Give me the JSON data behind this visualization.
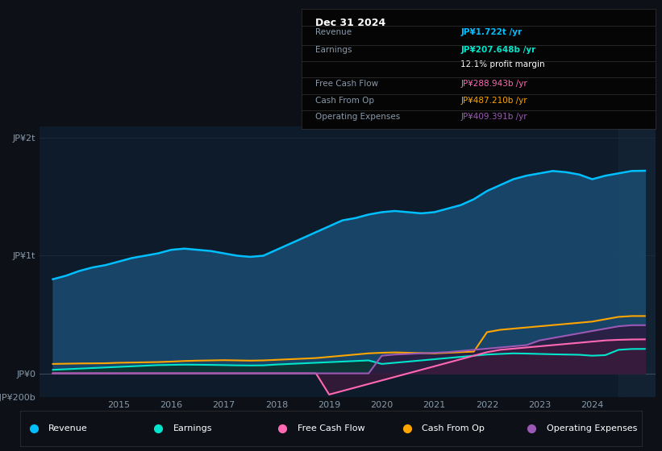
{
  "bg_color": "#0d1117",
  "chart_bg": "#0d1b2a",
  "years": [
    2013.75,
    2014.0,
    2014.25,
    2014.5,
    2014.75,
    2015.0,
    2015.25,
    2015.5,
    2015.75,
    2016.0,
    2016.25,
    2016.5,
    2016.75,
    2017.0,
    2017.25,
    2017.5,
    2017.75,
    2018.0,
    2018.25,
    2018.5,
    2018.75,
    2019.0,
    2019.25,
    2019.5,
    2019.75,
    2020.0,
    2020.25,
    2020.5,
    2020.75,
    2021.0,
    2021.25,
    2021.5,
    2021.75,
    2022.0,
    2022.25,
    2022.5,
    2022.75,
    2023.0,
    2023.25,
    2023.5,
    2023.75,
    2024.0,
    2024.25,
    2024.5,
    2024.75,
    2025.0
  ],
  "revenue": [
    800,
    830,
    870,
    900,
    920,
    950,
    980,
    1000,
    1020,
    1050,
    1060,
    1050,
    1040,
    1020,
    1000,
    990,
    1000,
    1050,
    1100,
    1150,
    1200,
    1250,
    1300,
    1320,
    1350,
    1370,
    1380,
    1370,
    1360,
    1370,
    1400,
    1430,
    1480,
    1550,
    1600,
    1650,
    1680,
    1700,
    1720,
    1710,
    1690,
    1650,
    1680,
    1700,
    1720,
    1722
  ],
  "earnings": [
    30,
    35,
    40,
    45,
    50,
    55,
    60,
    65,
    70,
    72,
    74,
    73,
    72,
    70,
    68,
    67,
    68,
    75,
    80,
    85,
    90,
    95,
    100,
    105,
    110,
    80,
    90,
    100,
    110,
    120,
    130,
    140,
    150,
    160,
    165,
    170,
    168,
    165,
    162,
    160,
    158,
    150,
    155,
    200,
    207,
    207.648
  ],
  "free_cash_flow": [
    0,
    0,
    0,
    0,
    0,
    0,
    0,
    0,
    0,
    0,
    0,
    0,
    0,
    0,
    0,
    0,
    0,
    0,
    0,
    0,
    0,
    -180,
    -150,
    -120,
    -90,
    -60,
    -30,
    0,
    30,
    60,
    90,
    120,
    150,
    180,
    200,
    210,
    220,
    230,
    240,
    250,
    260,
    270,
    280,
    285,
    288,
    288.943
  ],
  "cash_from_op": [
    80,
    82,
    84,
    85,
    86,
    90,
    92,
    94,
    96,
    100,
    105,
    108,
    110,
    112,
    110,
    108,
    110,
    115,
    120,
    125,
    130,
    140,
    150,
    160,
    170,
    175,
    178,
    175,
    172,
    170,
    175,
    180,
    185,
    350,
    370,
    380,
    390,
    400,
    410,
    420,
    430,
    440,
    460,
    480,
    487,
    487.21
  ],
  "operating_expenses": [
    0,
    0,
    0,
    0,
    0,
    0,
    0,
    0,
    0,
    0,
    0,
    0,
    0,
    0,
    0,
    0,
    0,
    0,
    0,
    0,
    0,
    0,
    0,
    0,
    0,
    150,
    160,
    165,
    170,
    175,
    180,
    190,
    200,
    210,
    220,
    230,
    240,
    280,
    300,
    320,
    340,
    360,
    380,
    400,
    409,
    409.391
  ],
  "revenue_color": "#00bfff",
  "revenue_fill": "#1a4a6e",
  "earnings_color": "#00e5cc",
  "earnings_fill": "#0d3330",
  "free_cash_flow_color": "#ff69b4",
  "free_cash_flow_fill": "#3d1a3d",
  "cash_from_op_color": "#ffa500",
  "operating_expenses_color": "#9b59b6",
  "operating_expenses_fill": "#2d1b40",
  "ylim_min": -200,
  "ylim_max": 2100,
  "xlim_min": 2013.5,
  "xlim_max": 2025.2,
  "yticks": [
    -200,
    0,
    1000,
    2000
  ],
  "ytick_labels": [
    "-JP¥200b",
    "JP¥0",
    "JP¥1t",
    "JP¥2t"
  ],
  "xtick_years": [
    2015,
    2016,
    2017,
    2018,
    2019,
    2020,
    2021,
    2022,
    2023,
    2024
  ],
  "info_box": {
    "title": "Dec 31 2024",
    "rows": [
      {
        "label": "Revenue",
        "value": "JP¥1.722t /yr",
        "value_color": "#00bfff"
      },
      {
        "label": "Earnings",
        "value": "JP¥207.648b /yr",
        "value_color": "#00e5cc"
      },
      {
        "label": "",
        "value": "12.1% profit margin",
        "value_color": "#ffffff"
      },
      {
        "label": "Free Cash Flow",
        "value": "JP¥288.943b /yr",
        "value_color": "#ff69b4"
      },
      {
        "label": "Cash From Op",
        "value": "JP¥487.210b /yr",
        "value_color": "#ffa500"
      },
      {
        "label": "Operating Expenses",
        "value": "JP¥409.391b /yr",
        "value_color": "#9b59b6"
      }
    ]
  },
  "legend": [
    {
      "label": "Revenue",
      "color": "#00bfff"
    },
    {
      "label": "Earnings",
      "color": "#00e5cc"
    },
    {
      "label": "Free Cash Flow",
      "color": "#ff69b4"
    },
    {
      "label": "Cash From Op",
      "color": "#ffa500"
    },
    {
      "label": "Operating Expenses",
      "color": "#9b59b6"
    }
  ]
}
